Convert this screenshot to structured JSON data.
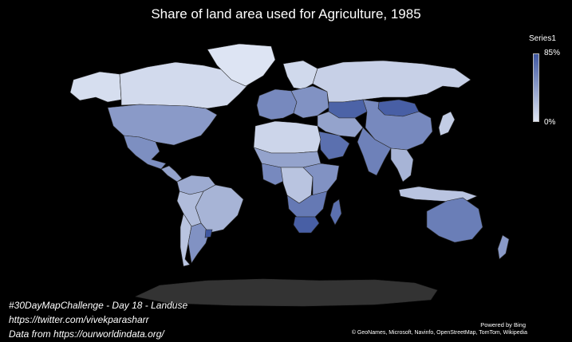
{
  "title": "Share of land area used for Agriculture, 1985",
  "legend": {
    "series_name": "Series1",
    "max_label": "85%",
    "min_label": "0%",
    "color_low": "#dfe6f4",
    "color_high": "#3f57a0"
  },
  "caption": {
    "line1": "#30DayMapChallenge - Day 18 - Landuse",
    "line2": "https://twitter.com/vivekparasharr",
    "line3": "Data from https://ourworldindata.org/"
  },
  "powered_by": "Powered by Bing",
  "attribution": "© GeoNames, Microsoft, Navinfo, OpenStreetMap, TomTom, Wikipedia",
  "colors": {
    "background": "#000000",
    "no_data": "#333333"
  },
  "map_regions": [
    {
      "name": "Canada",
      "share": 7
    },
    {
      "name": "Alaska",
      "share": 5
    },
    {
      "name": "Greenland",
      "share": 1
    },
    {
      "name": "United States",
      "share": 45
    },
    {
      "name": "Mexico",
      "share": 52
    },
    {
      "name": "Central America",
      "share": 40
    },
    {
      "name": "Brazil",
      "share": 30
    },
    {
      "name": "Colombia/Venezuela",
      "share": 35
    },
    {
      "name": "Peru/Bolivia",
      "share": 25
    },
    {
      "name": "Argentina",
      "share": 50
    },
    {
      "name": "Chile",
      "share": 20
    },
    {
      "name": "Uruguay",
      "share": 85
    },
    {
      "name": "Russia",
      "share": 13
    },
    {
      "name": "Scandinavia",
      "share": 8
    },
    {
      "name": "Western Europe",
      "share": 55
    },
    {
      "name": "Eastern Europe",
      "share": 50
    },
    {
      "name": "Kazakhstan",
      "share": 78
    },
    {
      "name": "Mongolia",
      "share": 80
    },
    {
      "name": "China",
      "share": 55
    },
    {
      "name": "India",
      "share": 60
    },
    {
      "name": "Middle East",
      "share": 40
    },
    {
      "name": "Saudi Arabia",
      "share": 70
    },
    {
      "name": "North Africa",
      "share": 10
    },
    {
      "name": "Sahel",
      "share": 40
    },
    {
      "name": "West Africa",
      "share": 55
    },
    {
      "name": "Central Africa",
      "share": 20
    },
    {
      "name": "East Africa",
      "share": 50
    },
    {
      "name": "Southern Africa",
      "share": 65
    },
    {
      "name": "South Africa",
      "share": 80
    },
    {
      "name": "Madagascar",
      "share": 70
    },
    {
      "name": "Southeast Asia",
      "share": 30
    },
    {
      "name": "Indonesia",
      "share": 20
    },
    {
      "name": "Japan",
      "share": 15
    },
    {
      "name": "Australia",
      "share": 62
    },
    {
      "name": "New Zealand",
      "share": 45
    }
  ]
}
